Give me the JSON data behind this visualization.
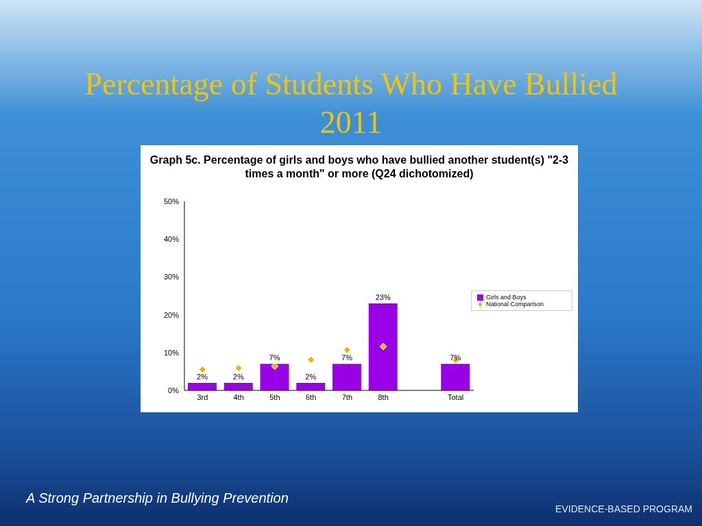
{
  "chart_data": {
    "type": "bar",
    "title": "Percentage of Students Who Have Bullied 2011",
    "subtitle": "Graph 5c. Percentage of girls and boys who have bullied another student(s) \"2-3 times a month\" or more (Q24 dichotomized)",
    "categories": [
      "3rd",
      "4th",
      "5th",
      "6th",
      "7th",
      "8th",
      null,
      "Total"
    ],
    "series": [
      {
        "name": "Girls and Boys",
        "color": "#9900e6",
        "values": [
          2,
          2,
          7,
          2,
          7,
          23,
          null,
          7
        ],
        "value_labels": [
          "2%",
          "2%",
          "7%",
          "2%",
          "7%",
          "23%",
          null,
          "7%"
        ]
      },
      {
        "name": "National Comparison",
        "type": "scatter",
        "color": "#e6b800",
        "values": [
          5.5,
          5.9,
          6.4,
          8.1,
          10.7,
          11.6,
          null,
          8.0
        ]
      }
    ],
    "ylim": [
      0,
      50
    ],
    "yticks": [
      {
        "value": 0,
        "label": "0%"
      },
      {
        "value": 10,
        "label": "10%"
      },
      {
        "value": 20,
        "label": "20%"
      },
      {
        "value": 30,
        "label": "30%"
      },
      {
        "value": 40,
        "label": "40%"
      },
      {
        "value": 50,
        "label": "50%"
      }
    ],
    "grid": false,
    "legend": "right",
    "marker": "diamond",
    "annotations": [
      "A Strong Partnership in Bullying Prevention",
      "EVIDENCE-BASED PROGRAM"
    ]
  }
}
